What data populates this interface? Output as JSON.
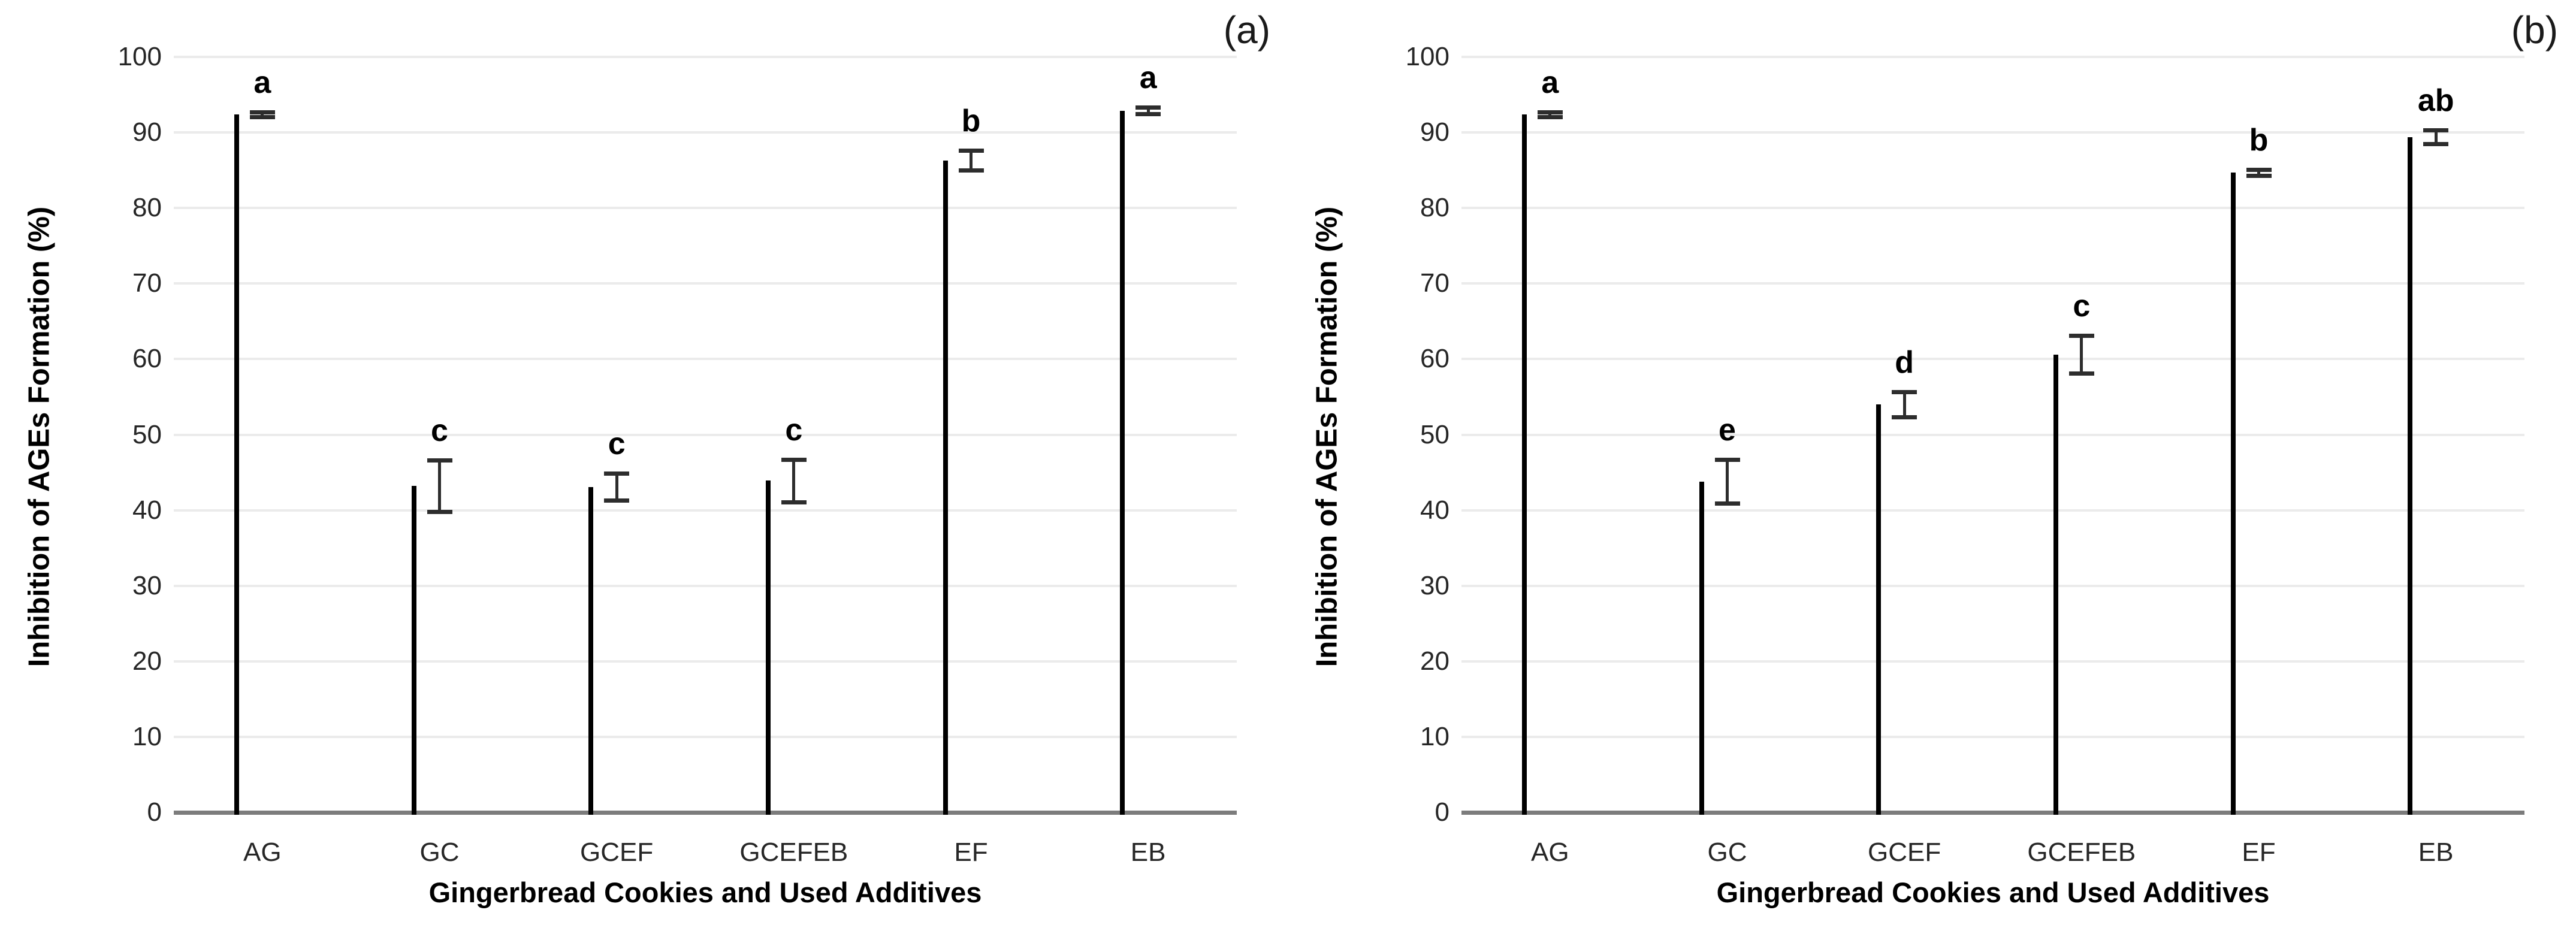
{
  "figure": {
    "ylabel": "Inhibition of AGEs Formation (%)",
    "xlabel": "Gingerbread Cookies and Used Additives",
    "y_ticks": [
      0,
      10,
      20,
      30,
      40,
      50,
      60,
      70,
      80,
      90,
      100
    ],
    "gridline_color": "#ebebeb",
    "baseline_color": "#7c7c7c",
    "error_bar_color": "#2d2d2d"
  },
  "chart_data": [
    {
      "type": "bar",
      "panel_label": "(a)",
      "title": "",
      "xlabel": "Gingerbread Cookies and Used Additives",
      "ylabel": "Inhibition of AGEs Formation (%)",
      "ylim": [
        0,
        100
      ],
      "grid": true,
      "categories": [
        "AG",
        "GC",
        "GCEF",
        "GCEFEB",
        "EF",
        "EB"
      ],
      "values": [
        92.4,
        43.2,
        43.1,
        43.9,
        86.3,
        92.9
      ],
      "errors": [
        0.3,
        3.4,
        1.8,
        2.8,
        1.3,
        0.4
      ],
      "sig_letters": [
        "a",
        "c",
        "c",
        "c",
        "b",
        "a"
      ],
      "bar_fills": [
        "#ffffff",
        "#7f7f7f",
        "#7f7f7f",
        "#7f7f7f",
        "#7f7f7f",
        "#7f7f7f"
      ],
      "bar_border": "#000000"
    },
    {
      "type": "bar",
      "panel_label": "(b)",
      "title": "",
      "xlabel": "Gingerbread Cookies and Used Additives",
      "ylabel": "Inhibition of AGEs Formation (%)",
      "ylim": [
        0,
        100
      ],
      "grid": true,
      "categories": [
        "AG",
        "GC",
        "GCEF",
        "GCEFEB",
        "EF",
        "EB"
      ],
      "values": [
        92.4,
        43.8,
        54.0,
        60.6,
        84.7,
        89.4
      ],
      "errors": [
        0.3,
        2.9,
        1.7,
        2.5,
        0.4,
        0.9
      ],
      "sig_letters": [
        "a",
        "e",
        "d",
        "c",
        "b",
        "ab"
      ],
      "bar_fills": [
        "#ffffff",
        "#b0aaa7",
        "#b0aaa7",
        "#b0aaa7",
        "#b0aaa7",
        "#b0aaa7"
      ],
      "bar_border": "#000000"
    }
  ]
}
